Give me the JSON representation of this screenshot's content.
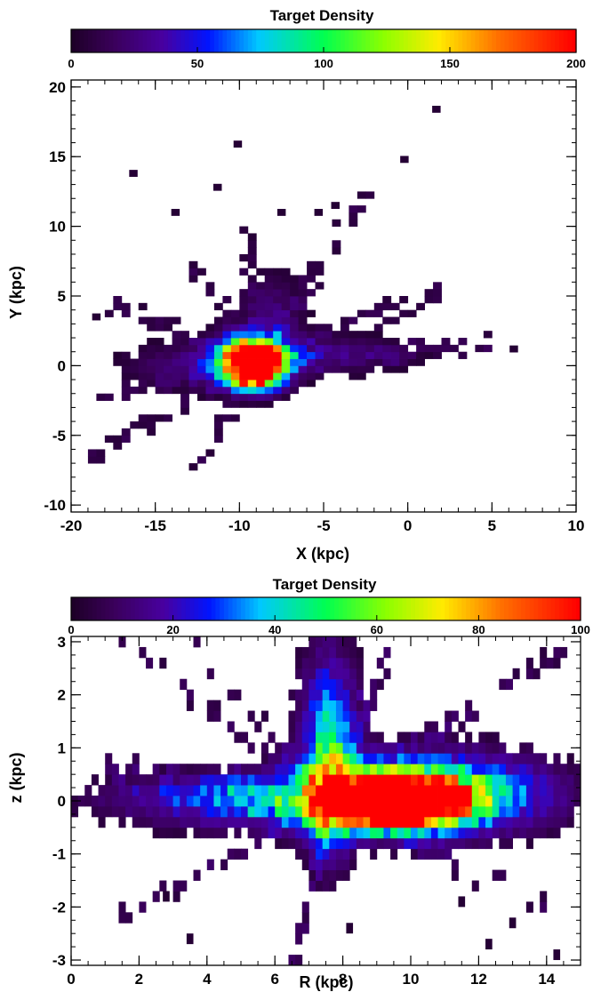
{
  "chart_data": [
    {
      "type": "heatmap",
      "colorbar": {
        "title": "Target Density",
        "min": 0,
        "max": 200,
        "tick_labels": [
          "0",
          "50",
          "100",
          "150",
          "200"
        ]
      },
      "xlabel": "X (kpc)",
      "ylabel": "Y (kpc)",
      "xlim": [
        -20,
        10
      ],
      "ylim": [
        -10.5,
        20.5
      ],
      "x_tick_labels": [
        "-20",
        "-15",
        "-10",
        "-5",
        "0",
        "5",
        "10"
      ],
      "y_tick_labels": [
        "-10",
        "-5",
        "0",
        "5",
        "10",
        "15",
        "20"
      ],
      "bin_size": 0.5,
      "blobs": [
        {
          "x": -9.3,
          "y": 0.3,
          "sx": 1.3,
          "sy": 1.1,
          "peak": 280
        },
        {
          "x": -8.8,
          "y": -0.8,
          "sx": 0.9,
          "sy": 0.7,
          "peak": 90
        },
        {
          "x": -5.5,
          "y": 0.8,
          "sx": 3.5,
          "sy": 0.9,
          "peak": 28
        },
        {
          "x": -13.0,
          "y": 0.0,
          "sx": 2.5,
          "sy": 1.1,
          "peak": 22
        },
        {
          "x": -8.0,
          "y": 3.5,
          "sx": 1.2,
          "sy": 2.0,
          "peak": 25
        }
      ],
      "arms": [
        {
          "x0": -9,
          "y0": 0,
          "x1": -19,
          "y1": -6.5,
          "width": 0.7,
          "level": 10
        },
        {
          "x0": -9,
          "y0": 0,
          "x1": -12.5,
          "y1": -7.5,
          "width": 0.6,
          "level": 10
        },
        {
          "x0": -9,
          "y0": 0,
          "x1": -2.5,
          "y1": 12.5,
          "width": 0.7,
          "level": 10
        },
        {
          "x0": -9,
          "y0": 0,
          "x1": 2.0,
          "y1": 5.5,
          "width": 0.9,
          "level": 12
        },
        {
          "x0": -9,
          "y0": 0,
          "x1": 5.0,
          "y1": 1.5,
          "width": 0.9,
          "level": 12
        },
        {
          "x0": -9,
          "y0": 0,
          "x1": -17.5,
          "y1": 4.5,
          "width": 0.8,
          "level": 10
        },
        {
          "x0": -9,
          "y0": 0,
          "x1": -13.0,
          "y1": 7.5,
          "width": 0.7,
          "level": 10
        },
        {
          "x0": -9,
          "y0": 0,
          "x1": -9.5,
          "y1": 10.5,
          "width": 0.6,
          "level": 8
        },
        {
          "x0": -9,
          "y0": 0,
          "x1": -18.5,
          "y1": -2.5,
          "width": 0.8,
          "level": 10
        }
      ],
      "isolated_bins": [
        [
          1.7,
          18.4
        ],
        [
          -10.1,
          15.9
        ],
        [
          -0.2,
          14.8
        ],
        [
          -16.3,
          13.8
        ],
        [
          -11.3,
          12.8
        ],
        [
          -13.8,
          11.0
        ],
        [
          -5.3,
          11.0
        ],
        [
          -7.5,
          11.0
        ],
        [
          -4.3,
          11.5
        ],
        [
          6.3,
          1.2
        ],
        [
          -18.5,
          3.5
        ]
      ]
    },
    {
      "type": "heatmap",
      "colorbar": {
        "title": "Target Density",
        "min": 0,
        "max": 100,
        "tick_labels": [
          "0",
          "20",
          "40",
          "60",
          "80",
          "100"
        ]
      },
      "xlabel": "R (kpc)",
      "ylabel": "z (kpc)",
      "xlim": [
        0,
        15
      ],
      "ylim": [
        -3.1,
        3.1
      ],
      "x_tick_labels": [
        "0",
        "2",
        "4",
        "6",
        "8",
        "10",
        "12",
        "14"
      ],
      "y_tick_labels": [
        "-3",
        "-2",
        "-1",
        "0",
        "1",
        "2",
        "3"
      ],
      "bin_size": 0.2,
      "blobs": [
        {
          "x": 9.6,
          "y": 0.0,
          "sx": 1.2,
          "sy": 0.28,
          "peak": 200
        },
        {
          "x": 10.5,
          "y": 0.15,
          "sx": 2.3,
          "sy": 0.5,
          "peak": 55
        },
        {
          "x": 6.0,
          "y": 0.0,
          "sx": 3.2,
          "sy": 0.35,
          "peak": 32
        },
        {
          "x": 7.6,
          "y": 0.4,
          "sx": 0.5,
          "sy": 1.0,
          "peak": 45
        },
        {
          "x": 7.6,
          "y": 1.8,
          "sx": 0.6,
          "sy": 1.0,
          "peak": 18
        }
      ],
      "arms": [
        {
          "x0": 7.6,
          "y0": 0,
          "x1": 3.5,
          "y1": 3.0,
          "width": 0.2,
          "level": 7
        },
        {
          "x0": 7.6,
          "y0": 0,
          "x1": 1.2,
          "y1": -2.3,
          "width": 0.2,
          "level": 7
        },
        {
          "x0": 7.6,
          "y0": 0,
          "x1": 14.5,
          "y1": 2.8,
          "width": 0.25,
          "level": 7
        },
        {
          "x0": 7.6,
          "y0": 0,
          "x1": 14.0,
          "y1": -2.0,
          "width": 0.25,
          "level": 7
        },
        {
          "x0": 7.6,
          "y0": 0,
          "x1": 6.6,
          "y1": -3.1,
          "width": 0.2,
          "level": 8
        },
        {
          "x0": 7.6,
          "y0": 0,
          "x1": 9.5,
          "y1": 3.1,
          "width": 0.3,
          "level": 8
        },
        {
          "x0": 7.6,
          "y0": 0,
          "x1": 0.6,
          "y1": 0.6,
          "width": 0.4,
          "level": 9
        },
        {
          "x0": 7.6,
          "y0": 0,
          "x1": 1.5,
          "y1": 3.0,
          "width": 0.2,
          "level": 6
        }
      ],
      "isolated_bins": [
        [
          3.5,
          -2.6
        ],
        [
          14.3,
          -2.9
        ],
        [
          13.0,
          -2.3
        ],
        [
          12.3,
          -2.7
        ],
        [
          2.8,
          -1.8
        ],
        [
          8.2,
          -2.4
        ],
        [
          11.5,
          -1.9
        ]
      ]
    }
  ]
}
